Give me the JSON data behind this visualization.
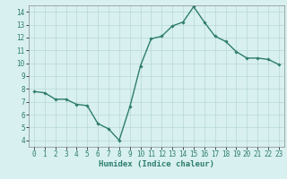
{
  "x": [
    0,
    1,
    2,
    3,
    4,
    5,
    6,
    7,
    8,
    9,
    10,
    11,
    12,
    13,
    14,
    15,
    16,
    17,
    18,
    19,
    20,
    21,
    22,
    23
  ],
  "y": [
    7.8,
    7.7,
    7.2,
    7.2,
    6.8,
    6.7,
    5.3,
    4.9,
    4.0,
    6.6,
    9.8,
    11.9,
    12.1,
    12.9,
    13.2,
    14.4,
    13.2,
    12.1,
    11.7,
    10.9,
    10.4,
    10.4,
    10.3,
    9.9
  ],
  "line_color": "#2e7d6e",
  "marker": "D",
  "marker_size": 1.8,
  "line_width": 1.0,
  "bg_color": "#d8f0f0",
  "grid_color": "#b8d8d4",
  "xlabel": "Humidex (Indice chaleur)",
  "xlim": [
    -0.5,
    23.5
  ],
  "ylim": [
    3.5,
    14.5
  ],
  "yticks": [
    4,
    5,
    6,
    7,
    8,
    9,
    10,
    11,
    12,
    13,
    14
  ],
  "xticks": [
    0,
    1,
    2,
    3,
    4,
    5,
    6,
    7,
    8,
    9,
    10,
    11,
    12,
    13,
    14,
    15,
    16,
    17,
    18,
    19,
    20,
    21,
    22,
    23
  ],
  "xlabel_fontsize": 6.5,
  "tick_fontsize": 5.5
}
